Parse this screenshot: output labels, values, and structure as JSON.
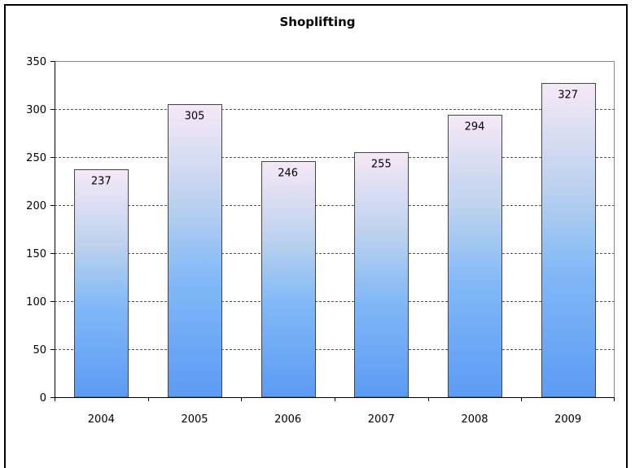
{
  "chart_data": {
    "type": "bar",
    "title": "Shoplifting",
    "categories": [
      "2004",
      "2005",
      "2006",
      "2007",
      "2008",
      "2009"
    ],
    "values": [
      237,
      305,
      246,
      255,
      294,
      327
    ],
    "data_labels": [
      "237",
      "305",
      "246",
      "255",
      "294",
      "327"
    ],
    "ylim": [
      0,
      350
    ],
    "yticks": [
      0,
      50,
      100,
      150,
      200,
      250,
      300,
      350
    ],
    "ytick_labels": [
      "0",
      "50",
      "100",
      "150",
      "200",
      "250",
      "300",
      "350"
    ],
    "xlabel": "",
    "ylabel": "",
    "grid": true,
    "legend": false,
    "colors": {
      "bar_top": "#f6e8f6",
      "bar_mid": "#b8d0ee",
      "bar_bottom": "#5b9bf3",
      "bar_edge": "#444444",
      "grid": "#555555",
      "axis": "#000000"
    }
  }
}
